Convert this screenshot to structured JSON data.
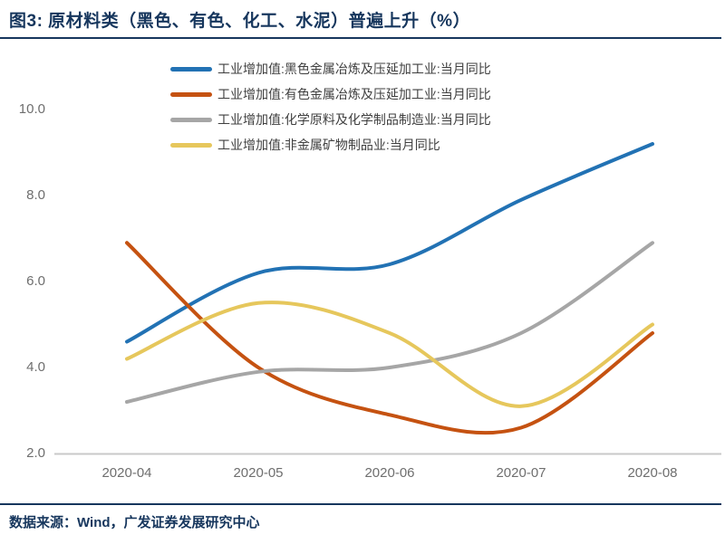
{
  "figure": {
    "title": "图3:  原材料类（黑色、有色、化工、水泥）普遍上升（%）",
    "source": "数据来源：Wind，广发证券发展研究中心"
  },
  "colors": {
    "title_navy": "#16365D",
    "blue": "#2272B4",
    "orange": "#C55211",
    "gray": "#A6A6A6",
    "yellow": "#E6C75C",
    "axis_text": "#6E6E6E",
    "axis_line": "#C9C9C9"
  },
  "chart_data": {
    "type": "line",
    "categories": [
      "2020-04",
      "2020-05",
      "2020-06",
      "2020-07",
      "2020-08"
    ],
    "series": [
      {
        "name": "工业增加值:黑色金属冶炼及压延加工业:当月同比",
        "color": "#2272B4",
        "values": [
          4.6,
          6.2,
          6.4,
          7.9,
          9.2
        ]
      },
      {
        "name": "工业增加值:有色金属冶炼及压延加工业:当月同比",
        "color": "#C55211",
        "values": [
          6.9,
          4.0,
          2.9,
          2.6,
          4.8
        ]
      },
      {
        "name": "工业增加值:化学原料及化学制品制造业:当月同比",
        "color": "#A6A6A6",
        "values": [
          3.2,
          3.9,
          4.0,
          4.8,
          6.9
        ]
      },
      {
        "name": "工业增加值:非金属矿物制品业:当月同比",
        "color": "#E6C75C",
        "values": [
          4.2,
          5.5,
          4.8,
          3.1,
          5.0
        ]
      }
    ],
    "ytick_labels": [
      "2.0",
      "4.0",
      "6.0",
      "8.0",
      "10.0"
    ],
    "ylim": [
      2.0,
      10.4
    ],
    "xlabel": "",
    "ylabel": "",
    "grid": false,
    "legend_position": "top-left"
  }
}
